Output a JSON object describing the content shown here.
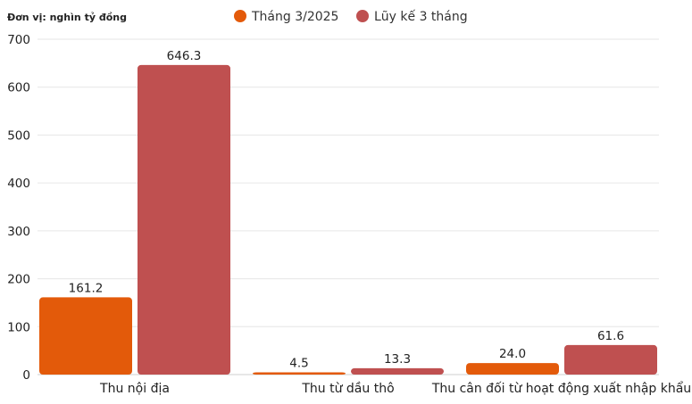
{
  "unit_note": "Đơn vị: nghìn tỷ đồng",
  "colors": {
    "series_1": "#E35A0A",
    "series_2": "#BF5050"
  },
  "chart_data": {
    "type": "bar",
    "title": "",
    "xlabel": "",
    "ylabel": "",
    "categories": [
      "Thu nội địa",
      "Thu từ dầu thô",
      "Thu cân đối từ hoạt động xuất nhập khẩu"
    ],
    "series": [
      {
        "name": "Tháng 3/2025",
        "values": [
          161.2,
          4.5,
          24.0
        ],
        "labels": [
          "161.2",
          "4.5",
          "24.0"
        ]
      },
      {
        "name": "Lũy kế 3 tháng",
        "values": [
          646.3,
          13.3,
          61.6
        ],
        "labels": [
          "646.3",
          "13.3",
          "61.6"
        ]
      }
    ],
    "ylim": [
      0,
      700
    ],
    "yticks": [
      "0",
      "100",
      "200",
      "300",
      "400",
      "500",
      "600",
      "700"
    ],
    "grid": true,
    "legend_position": "top-center"
  }
}
